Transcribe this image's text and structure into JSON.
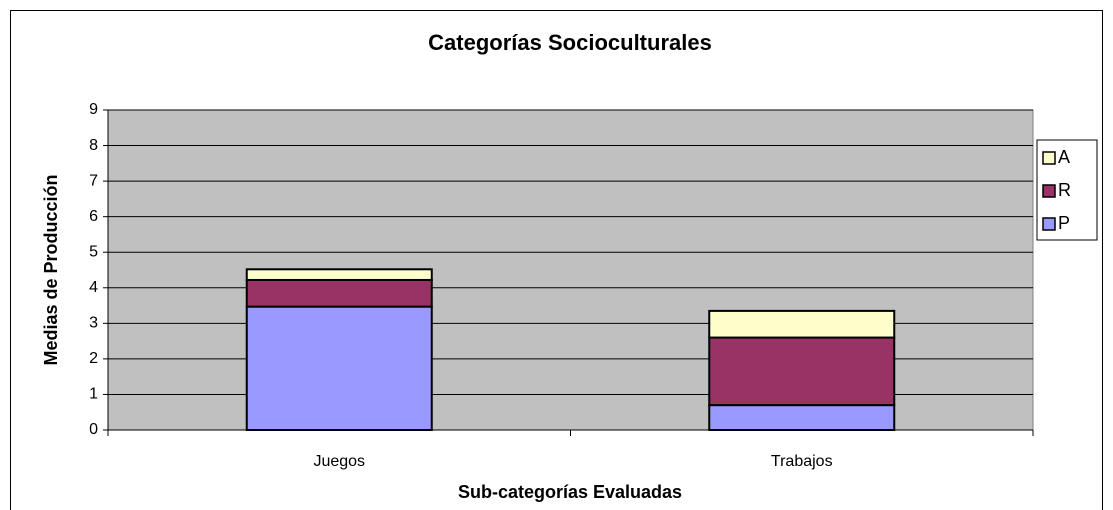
{
  "chart_data": {
    "type": "stacked_bar",
    "title": "Categorías Socioculturales",
    "x_label": "Sub-categorías Evaluadas",
    "y_label": "Medias de Producción",
    "categories": [
      "Juegos",
      "Trabajos"
    ],
    "series": [
      {
        "name": "P",
        "color": "#9999ff",
        "values": [
          3.47,
          0.7
        ]
      },
      {
        "name": "R",
        "color": "#993366",
        "values": [
          0.75,
          1.9
        ]
      },
      {
        "name": "A",
        "color": "#ffffcc",
        "values": [
          0.3,
          0.75
        ]
      }
    ],
    "ylim": [
      0,
      9
    ],
    "yticks": [
      0,
      1,
      2,
      3,
      4,
      5,
      6,
      7,
      8,
      9
    ],
    "grid": true,
    "legend": "right"
  }
}
